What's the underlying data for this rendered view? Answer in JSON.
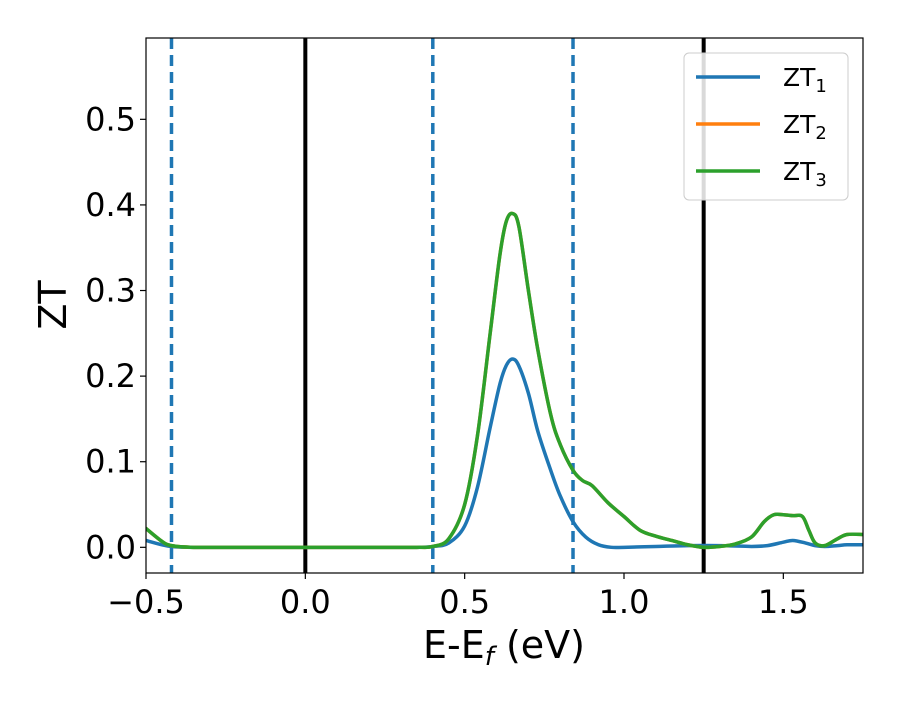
{
  "chart_data": {
    "type": "line",
    "title": "",
    "xlabel_main": "E-E",
    "xlabel_sub": "f",
    "xlabel_tail": " (eV)",
    "ylabel": "ZT",
    "xlim": [
      -0.5,
      1.75
    ],
    "ylim": [
      -0.03,
      0.595
    ],
    "xticks": [
      -0.5,
      0.0,
      0.5,
      1.0,
      1.5
    ],
    "xtick_labels": [
      "−0.5",
      "0.0",
      "0.5",
      "1.0",
      "1.5"
    ],
    "yticks": [
      0.0,
      0.1,
      0.2,
      0.3,
      0.4,
      0.5
    ],
    "ytick_labels": [
      "0.0",
      "0.1",
      "0.2",
      "0.3",
      "0.4",
      "0.5"
    ],
    "grid": false,
    "legend_position": "top-right",
    "vlines_solid": [
      0.0,
      1.25
    ],
    "vlines_dashed": [
      -0.42,
      0.4,
      0.84
    ],
    "series": [
      {
        "name": "ZT",
        "sub": "1",
        "color": "#1f77b4",
        "x": [
          -0.5,
          -0.45,
          -0.42,
          -0.35,
          -0.2,
          0.0,
          0.2,
          0.35,
          0.4,
          0.45,
          0.5,
          0.54,
          0.58,
          0.61,
          0.63,
          0.65,
          0.67,
          0.7,
          0.73,
          0.77,
          0.8,
          0.84,
          0.88,
          0.92,
          0.96,
          1.0,
          1.1,
          1.2,
          1.3,
          1.4,
          1.45,
          1.5,
          1.53,
          1.57,
          1.6,
          1.63,
          1.67,
          1.7,
          1.75
        ],
        "y": [
          0.008,
          0.003,
          0.001,
          0.0,
          0.0,
          0.0,
          0.0,
          0.0,
          0.001,
          0.005,
          0.025,
          0.07,
          0.14,
          0.19,
          0.212,
          0.22,
          0.212,
          0.18,
          0.135,
          0.09,
          0.06,
          0.03,
          0.012,
          0.003,
          0.0,
          0.0,
          0.001,
          0.002,
          0.002,
          0.001,
          0.002,
          0.006,
          0.008,
          0.005,
          0.002,
          0.001,
          0.002,
          0.003,
          0.003
        ]
      },
      {
        "name": "ZT",
        "sub": "2",
        "color": "#ff7f0e",
        "x": [
          -0.5,
          -0.45,
          -0.42,
          -0.35,
          -0.2,
          0.0,
          0.2,
          0.35,
          0.4,
          0.45,
          0.5,
          0.54,
          0.58,
          0.61,
          0.63,
          0.65,
          0.67,
          0.7,
          0.73,
          0.77,
          0.8,
          0.84,
          0.87,
          0.9,
          0.95,
          1.0,
          1.05,
          1.1,
          1.15,
          1.2,
          1.25,
          1.3,
          1.35,
          1.4,
          1.44,
          1.47,
          1.5,
          1.53,
          1.56,
          1.58,
          1.6,
          1.63,
          1.67,
          1.7,
          1.75
        ],
        "y": [
          0.022,
          0.007,
          0.002,
          0.0,
          0.0,
          0.0,
          0.0,
          0.0,
          0.001,
          0.01,
          0.05,
          0.13,
          0.25,
          0.34,
          0.38,
          0.39,
          0.375,
          0.3,
          0.23,
          0.155,
          0.12,
          0.09,
          0.078,
          0.072,
          0.052,
          0.036,
          0.02,
          0.013,
          0.008,
          0.003,
          0.0,
          0.001,
          0.004,
          0.012,
          0.03,
          0.038,
          0.038,
          0.037,
          0.036,
          0.02,
          0.005,
          0.002,
          0.01,
          0.015,
          0.015
        ]
      },
      {
        "name": "ZT",
        "sub": "3",
        "color": "#2ca02c",
        "x": [
          -0.5,
          -0.45,
          -0.42,
          -0.35,
          -0.2,
          0.0,
          0.2,
          0.35,
          0.4,
          0.45,
          0.5,
          0.54,
          0.58,
          0.61,
          0.63,
          0.65,
          0.67,
          0.7,
          0.73,
          0.77,
          0.8,
          0.84,
          0.87,
          0.9,
          0.95,
          1.0,
          1.05,
          1.1,
          1.15,
          1.2,
          1.25,
          1.3,
          1.35,
          1.4,
          1.44,
          1.47,
          1.5,
          1.53,
          1.56,
          1.58,
          1.6,
          1.63,
          1.67,
          1.7,
          1.75
        ],
        "y": [
          0.022,
          0.007,
          0.002,
          0.0,
          0.0,
          0.0,
          0.0,
          0.0,
          0.001,
          0.01,
          0.05,
          0.13,
          0.25,
          0.34,
          0.38,
          0.39,
          0.375,
          0.3,
          0.23,
          0.155,
          0.12,
          0.09,
          0.078,
          0.072,
          0.052,
          0.036,
          0.02,
          0.013,
          0.008,
          0.003,
          0.0,
          0.001,
          0.004,
          0.012,
          0.03,
          0.038,
          0.038,
          0.037,
          0.036,
          0.02,
          0.005,
          0.002,
          0.01,
          0.015,
          0.015
        ]
      }
    ]
  }
}
